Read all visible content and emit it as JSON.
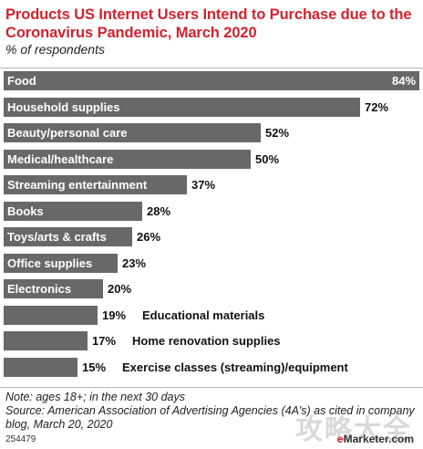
{
  "header": {
    "title": "Products US Internet Users Intend to Purchase due to the Coronavirus Pandemic, March 2020",
    "subtitle": "% of respondents"
  },
  "chart_data": {
    "type": "bar",
    "orientation": "horizontal",
    "categories": [
      "Food",
      "Household supplies",
      "Beauty/personal care",
      "Medical/healthcare",
      "Streaming entertainment",
      "Books",
      "Toys/arts & crafts",
      "Office supplies",
      "Electronics",
      "Educational materials",
      "Home renovation supplies",
      "Exercise classes (streaming)/equipment"
    ],
    "values": [
      84,
      72,
      52,
      50,
      37,
      28,
      26,
      23,
      20,
      19,
      17,
      15
    ],
    "value_labels": [
      "84%",
      "72%",
      "52%",
      "50%",
      "37%",
      "28%",
      "26%",
      "23%",
      "20%",
      "19%",
      "17%",
      "15%"
    ],
    "title": "Products US Internet Users Intend to Purchase due to the Coronavirus Pandemic, March 2020",
    "subtitle": "% of respondents",
    "xlim": [
      0,
      84
    ],
    "grid": false,
    "bar_color": "#686868",
    "title_color": "#d4232e"
  },
  "footer": {
    "note": "Note: ages 18+; in the next 30 days",
    "source": "Source: American Association of Advertising Agencies (4A's) as cited in company blog, March 20, 2020",
    "chart_id": "254479",
    "brand_prefix": "e",
    "brand_name": "Marketer",
    "brand_suffix": ".com",
    "watermark": "攻略大全"
  }
}
